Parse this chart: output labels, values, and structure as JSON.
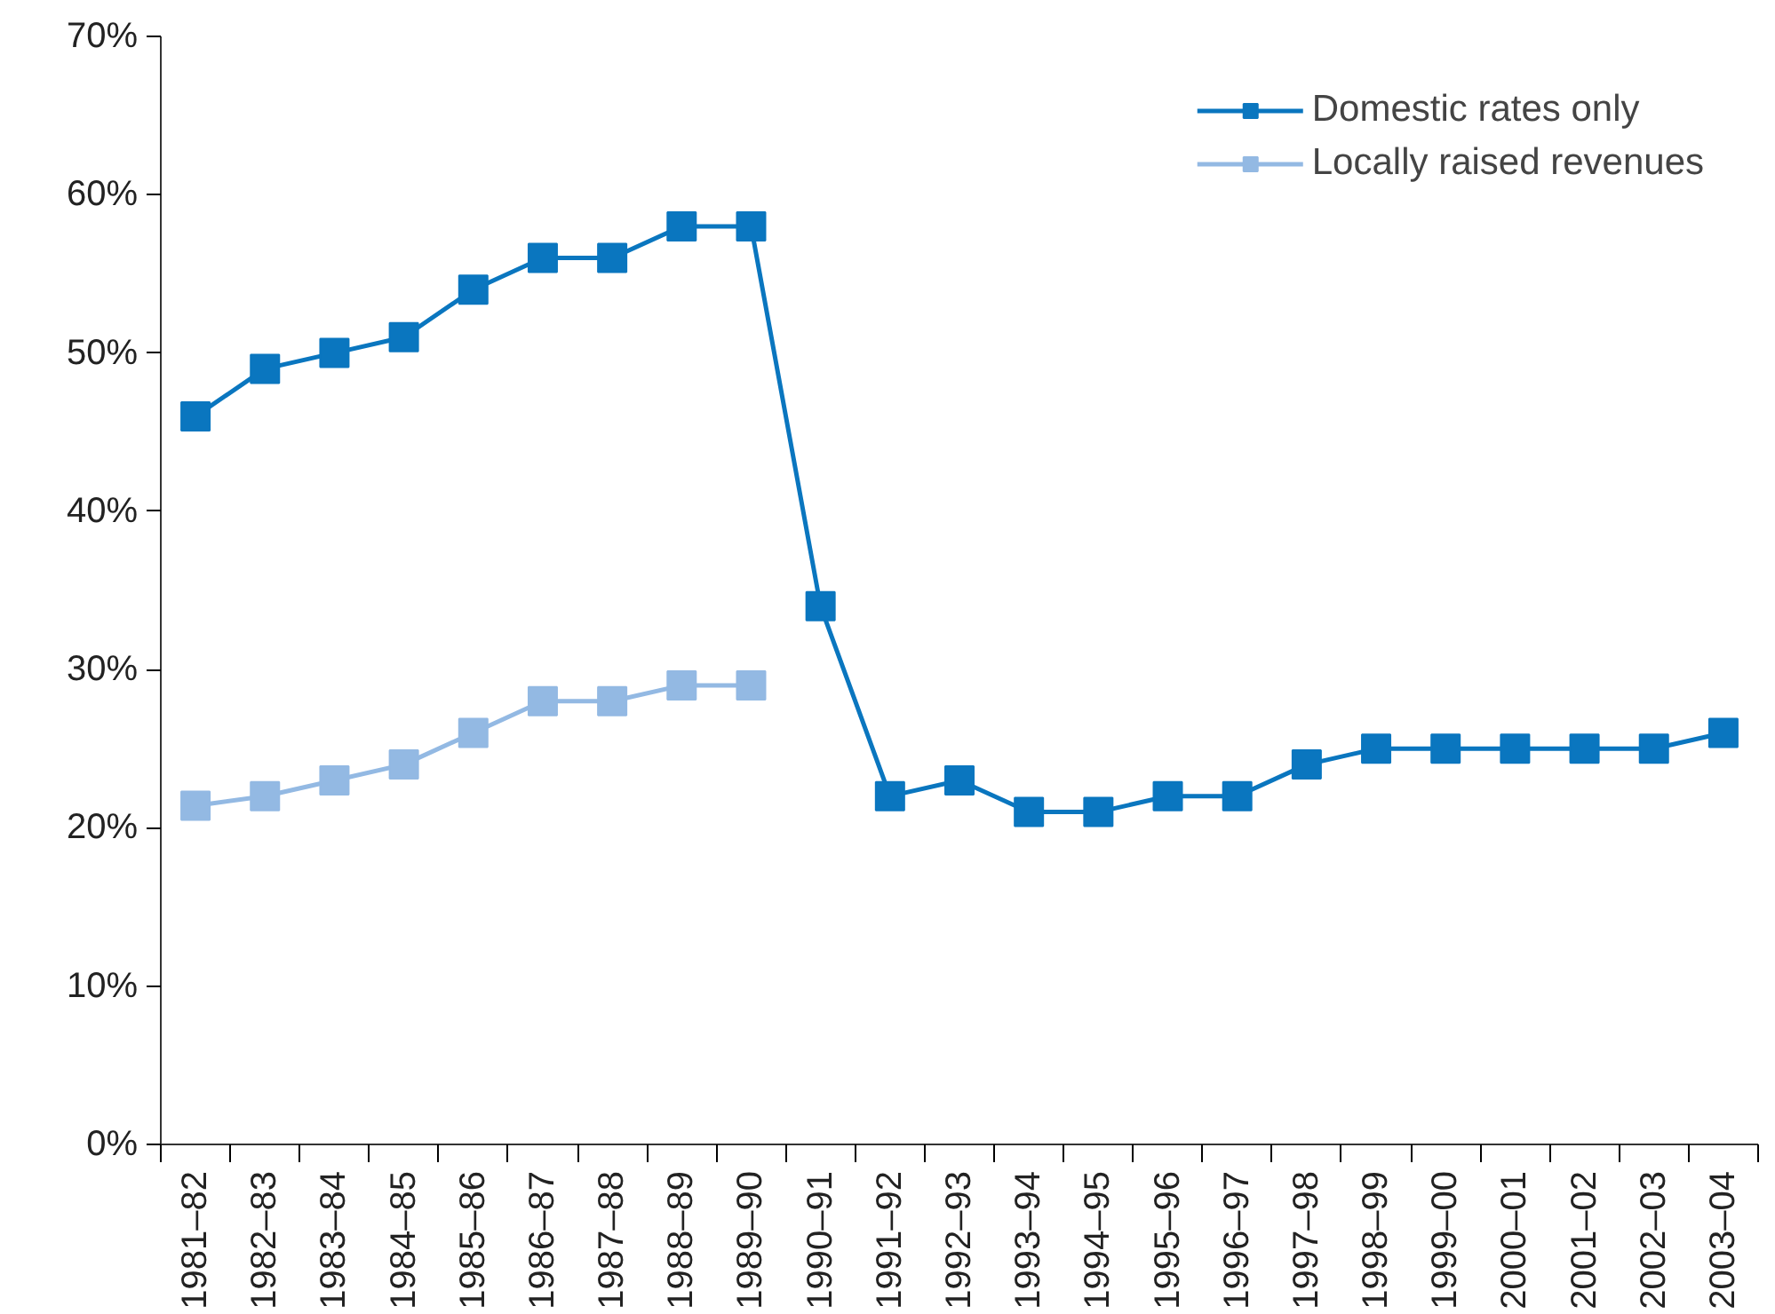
{
  "chart_data": {
    "type": "line",
    "categories": [
      "1981–82",
      "1982–83",
      "1983–84",
      "1984–85",
      "1985–86",
      "1986–87",
      "1987–88",
      "1988–89",
      "1989–90",
      "1990–91",
      "1991–92",
      "1992–93",
      "1993–94",
      "1994–95",
      "1995–96",
      "1996–97",
      "1997–98",
      "1998–99",
      "1999–00",
      "2000–01",
      "2001–02",
      "2002–03",
      "2003–04"
    ],
    "series": [
      {
        "name": "Domestic rates only",
        "color": "#0a76bf",
        "values": [
          46,
          49,
          50,
          51,
          54,
          56,
          56,
          58,
          58,
          34,
          22,
          23,
          21,
          21,
          22,
          22,
          24,
          25,
          25,
          25,
          25,
          25,
          26
        ]
      },
      {
        "name": "Locally raised revenues",
        "color": "#93b9e3",
        "values": [
          21.4,
          22,
          23,
          24,
          26,
          28,
          28,
          29,
          29,
          null,
          null,
          null,
          null,
          null,
          null,
          null,
          null,
          null,
          null,
          null,
          null,
          null,
          null
        ]
      }
    ],
    "ylim": [
      0,
      70
    ],
    "yticks": [
      {
        "value": 0,
        "label": "0%"
      },
      {
        "value": 10,
        "label": "10%"
      },
      {
        "value": 20,
        "label": "20%"
      },
      {
        "value": 30,
        "label": "30%"
      },
      {
        "value": 40,
        "label": "40%"
      },
      {
        "value": 50,
        "label": "50%"
      },
      {
        "value": 60,
        "label": "60%"
      },
      {
        "value": 70,
        "label": "70%"
      }
    ],
    "grid": false,
    "legend": "top right",
    "marker": "square",
    "line_style": "solid"
  }
}
